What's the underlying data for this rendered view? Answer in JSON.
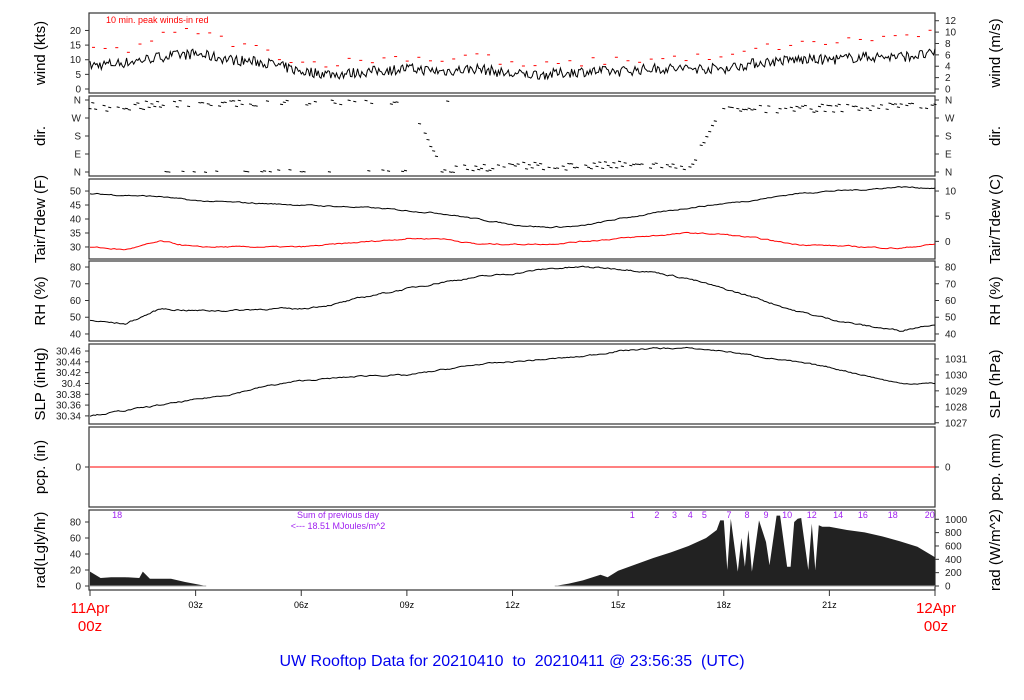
{
  "footer_title": "UW Rooftop Data for 20210410  to  20210411 @ 23:56:35  (UTC)",
  "x_axis": {
    "start_label": [
      "11Apr",
      "00z"
    ],
    "end_label": [
      "12Apr",
      "00z"
    ],
    "ticks": [
      {
        "h": 3,
        "label": "03z"
      },
      {
        "h": 6,
        "label": "06z"
      },
      {
        "h": 9,
        "label": "09z"
      },
      {
        "h": 12,
        "label": "12z"
      },
      {
        "h": 15,
        "label": "15z"
      },
      {
        "h": 18,
        "label": "18z"
      },
      {
        "h": 21,
        "label": "21z"
      }
    ],
    "range_hours": [
      0,
      24
    ],
    "label_color": "#ff0000"
  },
  "chart_data": [
    {
      "type": "line",
      "id": "wind",
      "ylabel": "wind (kts)",
      "ylabel_right": "wind (m/s)",
      "ylim": [
        0,
        24.6
      ],
      "yticks": [
        0,
        5,
        10,
        15,
        20
      ],
      "yticks_right": [
        0,
        2,
        4,
        6,
        8,
        10,
        12
      ],
      "annotation": "10 min. peak winds-in red",
      "x_hours": [
        0,
        1,
        2,
        3,
        4,
        5,
        6,
        7,
        8,
        9,
        10,
        11,
        12,
        13,
        14,
        15,
        16,
        17,
        18,
        19,
        20,
        21,
        22,
        23,
        24
      ],
      "series": [
        {
          "name": "wind",
          "color": "#000000",
          "values": [
            8,
            9,
            11,
            12,
            10,
            9,
            6,
            5,
            6,
            7,
            6,
            7,
            5,
            5,
            6,
            6,
            7,
            7,
            7,
            9,
            10,
            10,
            11,
            11,
            12
          ]
        },
        {
          "name": "10 min. peak winds",
          "color": "#ff0000",
          "values": [
            14,
            13,
            18,
            20,
            16,
            13,
            9,
            9,
            10,
            11,
            10,
            12,
            8,
            8,
            9,
            10,
            10,
            11,
            10,
            14,
            15,
            16,
            17,
            18,
            19
          ]
        }
      ]
    },
    {
      "type": "scatter",
      "id": "dir",
      "ylabel": "dir.",
      "ylabel_right": "dir.",
      "ylim": [
        0,
        360
      ],
      "ytick_labels": [
        {
          "v": 360,
          "t": "N"
        },
        {
          "v": 270,
          "t": "W"
        },
        {
          "v": 180,
          "t": "S"
        },
        {
          "v": 90,
          "t": "E"
        },
        {
          "v": 0,
          "t": "N"
        }
      ],
      "x_hours": [
        0,
        1,
        2,
        3,
        4,
        5,
        6,
        7,
        8,
        9,
        10,
        11,
        12,
        13,
        14,
        15,
        16,
        17,
        18,
        19,
        20,
        21,
        22,
        23
      ],
      "values_deg": [
        330,
        320,
        345,
        350,
        345,
        350,
        355,
        355,
        358,
        358,
        10,
        25,
        30,
        30,
        30,
        35,
        35,
        20,
        310,
        315,
        320,
        320,
        325,
        330
      ]
    },
    {
      "type": "line",
      "id": "temp",
      "ylabel": "Tair/Tdew (F)",
      "ylabel_right": "Tair/Tdew (C)",
      "ylim": [
        25.7,
        54.3
      ],
      "yticks": [
        30,
        35,
        40,
        45,
        50
      ],
      "yticks_right_c": [
        0,
        5,
        10
      ],
      "x_hours": [
        0,
        1,
        2,
        3,
        4,
        5,
        6,
        7,
        8,
        9,
        10,
        11,
        12,
        13,
        14,
        15,
        16,
        17,
        18,
        19,
        20,
        21,
        22,
        23,
        24
      ],
      "series": [
        {
          "name": "Tair",
          "color": "#000000",
          "values": [
            49,
            48.5,
            48,
            46.5,
            46,
            45.5,
            45,
            44.5,
            44,
            43,
            42,
            40,
            38,
            37,
            37.5,
            40,
            42,
            44,
            45.5,
            47,
            49,
            50,
            50.5,
            51.5,
            51
          ]
        },
        {
          "name": "Tdew",
          "color": "#ff0000",
          "values": [
            30,
            29,
            32,
            30,
            30,
            30,
            30,
            31,
            32,
            33,
            33,
            31,
            31,
            31,
            32,
            33,
            34,
            35,
            34.5,
            33,
            31,
            30.5,
            30,
            29.5,
            31
          ]
        }
      ]
    },
    {
      "type": "line",
      "id": "rh",
      "ylabel": "RH (%)",
      "ylabel_right": "RH (%)",
      "ylim": [
        35.8,
        83.6
      ],
      "yticks": [
        40,
        50,
        60,
        70,
        80
      ],
      "x_hours": [
        0,
        1,
        2,
        3,
        4,
        5,
        6,
        7,
        8,
        9,
        10,
        11,
        12,
        13,
        14,
        15,
        16,
        17,
        18,
        19,
        20,
        21,
        22,
        23,
        24
      ],
      "series": [
        {
          "name": "RH",
          "color": "#000000",
          "values": [
            48,
            46,
            55,
            54,
            54,
            55,
            55,
            58,
            63,
            67,
            71,
            74,
            76,
            79,
            80,
            79,
            77,
            73,
            67,
            61,
            54,
            49,
            45,
            42,
            46
          ]
        }
      ]
    },
    {
      "type": "line",
      "id": "slp",
      "ylabel": "SLP (inHg)",
      "ylabel_right": "SLP (hPa)",
      "ylim": [
        30.325,
        30.473
      ],
      "yticks": [
        30.34,
        30.36,
        30.38,
        30.4,
        30.42,
        30.44,
        30.46
      ],
      "yticks_right_hpa": [
        1027,
        1028,
        1029,
        1030,
        1031
      ],
      "x_hours": [
        0,
        1,
        2,
        3,
        4,
        5,
        6,
        7,
        8,
        9,
        10,
        11,
        12,
        13,
        14,
        15,
        16,
        17,
        18,
        19,
        20,
        21,
        22,
        23,
        24
      ],
      "series": [
        {
          "name": "SLP",
          "color": "#000000",
          "values": [
            30.34,
            30.35,
            30.36,
            30.37,
            30.38,
            30.395,
            30.405,
            30.41,
            30.415,
            30.415,
            30.425,
            30.435,
            30.44,
            30.445,
            30.45,
            30.46,
            30.465,
            30.465,
            30.46,
            30.45,
            30.44,
            30.43,
            30.415,
            30.4,
            30.4
          ]
        }
      ]
    },
    {
      "type": "line",
      "id": "pcp",
      "ylabel": "pcp. (in)",
      "ylabel_right": "pcp. (mm)",
      "ylim": [
        -1,
        1
      ],
      "yticks": [
        0
      ],
      "yticks_right": [
        0
      ],
      "x_hours": [
        0,
        24
      ],
      "series": [
        {
          "name": "pcp",
          "color": "#ff0000",
          "values": [
            0,
            0
          ]
        }
      ]
    },
    {
      "type": "area",
      "id": "rad",
      "ylabel": "rad(Lgly/hr)",
      "ylabel_right": "rad (W/m^2)",
      "ylim": [
        -5,
        95
      ],
      "yticks": [
        0,
        20,
        40,
        60,
        80
      ],
      "yticks_right": [
        0,
        200,
        400,
        600,
        800,
        1000
      ],
      "color": "#222222",
      "x_hours": [
        0,
        0.3,
        0.6,
        1,
        1.4,
        1.5,
        1.7,
        2,
        2.3,
        2.7,
        3.3,
        13.2,
        13.6,
        14,
        14.5,
        14.7,
        15,
        15.5,
        16,
        16.5,
        17,
        17.5,
        17.8,
        17.9,
        18.0,
        18.1,
        18.2,
        18.4,
        18.5,
        18.6,
        18.7,
        18.8,
        19.0,
        19.2,
        19.3,
        19.5,
        19.6,
        19.8,
        19.9,
        20.0,
        20.1,
        20.2,
        20.4,
        20.5,
        20.6,
        20.7,
        20.8,
        21,
        21.5,
        22,
        22.5,
        23,
        23.5,
        24
      ],
      "values": [
        18,
        10,
        11,
        11,
        10,
        18,
        9,
        9,
        9,
        5,
        0,
        0,
        3,
        7,
        14,
        11,
        19,
        27,
        35,
        42,
        50,
        60,
        70,
        82,
        82,
        20,
        84,
        18,
        60,
        24,
        70,
        18,
        82,
        55,
        26,
        88,
        88,
        24,
        24,
        80,
        84,
        85,
        20,
        78,
        20,
        76,
        74,
        74,
        70,
        67,
        62,
        56,
        49,
        36
      ],
      "hour_marks": [
        {
          "h": 0.77,
          "t": "18"
        },
        {
          "h": 15.4,
          "t": "1"
        },
        {
          "h": 16.1,
          "t": "2"
        },
        {
          "h": 16.6,
          "t": "3"
        },
        {
          "h": 17.05,
          "t": "4"
        },
        {
          "h": 17.45,
          "t": "5"
        },
        {
          "h": 18.15,
          "t": "7"
        },
        {
          "h": 18.66,
          "t": "8"
        },
        {
          "h": 19.2,
          "t": "9"
        },
        {
          "h": 19.8,
          "t": "10"
        },
        {
          "h": 20.5,
          "t": "12"
        },
        {
          "h": 21.25,
          "t": "14"
        },
        {
          "h": 21.95,
          "t": "16"
        },
        {
          "h": 22.8,
          "t": "18"
        },
        {
          "h": 23.85,
          "t": "20"
        }
      ],
      "mark_color": "#a020f0",
      "annotation": [
        "Sum of previous day",
        "<--- 18.51 MJoules/m^2"
      ]
    }
  ]
}
